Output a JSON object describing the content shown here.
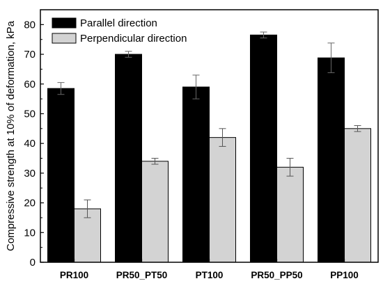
{
  "chart_data": {
    "type": "bar",
    "title": "",
    "xlabel": "",
    "ylabel": "Compressive strength at 10% of deformation, kPa",
    "ylim": [
      0,
      85
    ],
    "yticks": [
      0,
      10,
      20,
      30,
      40,
      50,
      60,
      70,
      80
    ],
    "categories": [
      "PR100",
      "PR50_PT50",
      "PT100",
      "PR50_PP50",
      "PP100"
    ],
    "series": [
      {
        "name": "Parallel direction",
        "color": "#000000",
        "values": [
          58.5,
          70,
          59,
          76.5,
          68.8
        ],
        "error": [
          2.0,
          1.0,
          4.0,
          1.0,
          5.0
        ]
      },
      {
        "name": "Perpendicular direction",
        "color": "#d3d3d3",
        "values": [
          18,
          34,
          42,
          32,
          45
        ],
        "error": [
          3.0,
          1.0,
          3.0,
          3.0,
          1.0
        ]
      }
    ],
    "legend": "top-left",
    "grid": false
  }
}
